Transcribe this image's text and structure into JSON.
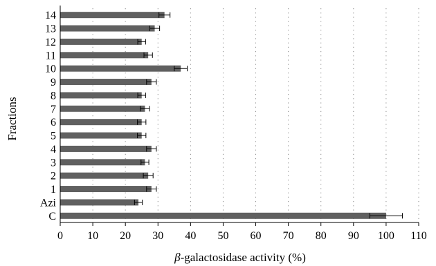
{
  "chart_data": {
    "type": "bar",
    "orientation": "horizontal",
    "categories": [
      "14",
      "13",
      "12",
      "11",
      "10",
      "9",
      "8",
      "7",
      "6",
      "5",
      "4",
      "3",
      "2",
      "1",
      "Azi",
      "C"
    ],
    "values": [
      32,
      29,
      25,
      27,
      37,
      28,
      25,
      26,
      25,
      25,
      28,
      26,
      27,
      28,
      24,
      100
    ],
    "errors": [
      1.7,
      1.5,
      1.2,
      1.3,
      2.0,
      1.5,
      1.2,
      1.4,
      1.3,
      1.3,
      1.5,
      1.2,
      1.5,
      1.5,
      1.2,
      5.0
    ],
    "xlabel_italic": "β",
    "xlabel": "-galactosidase activity (%)",
    "ylabel": "Fractions",
    "xlim": [
      0,
      110
    ],
    "xticks": [
      0,
      10,
      20,
      30,
      40,
      50,
      60,
      70,
      80,
      90,
      100,
      110
    ],
    "grid": "vertical-dotted",
    "bar_color": "#606060"
  }
}
